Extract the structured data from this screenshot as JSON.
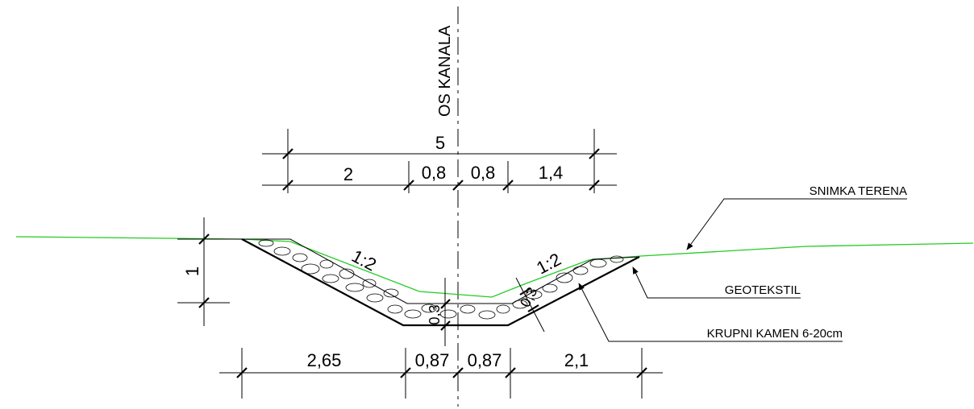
{
  "axis": {
    "label": "OS KANALA"
  },
  "top_dims": {
    "total": "5",
    "segments": [
      "2",
      "0,8",
      "0,8",
      "1,4"
    ]
  },
  "bottom_dims": {
    "segments": [
      "2,65",
      "0,87",
      "0,87",
      "2,1"
    ]
  },
  "height_dim": "1",
  "slopes": {
    "left": "1:2",
    "right": "1:2"
  },
  "thickness": {
    "bottom": "0,3",
    "right": "0,3"
  },
  "callouts": {
    "terrain": "SNIMKA TERENA",
    "geotextile": "GEOTEKSTIL",
    "stone": "KRUPNI KAMEN 6-20cm"
  },
  "colors": {
    "terrain_line": "#22cc22",
    "ink": "#000000"
  }
}
